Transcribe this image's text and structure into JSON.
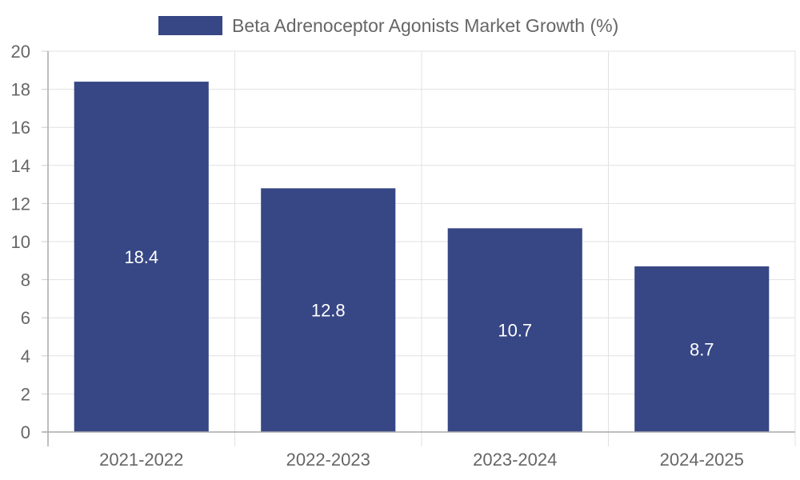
{
  "chart_data": {
    "type": "bar",
    "legend": {
      "position": "top",
      "items": [
        {
          "label": "Beta Adrenoceptor Agonists Market Growth (%)",
          "color": "#374785"
        }
      ]
    },
    "categories": [
      "2021-2022",
      "2022-2023",
      "2023-2024",
      "2024-2025"
    ],
    "series": [
      {
        "name": "Beta Adrenoceptor Agonists Market Growth (%)",
        "values": [
          18.4,
          12.8,
          10.7,
          8.7
        ],
        "color": "#374785"
      }
    ],
    "data_labels": [
      "18.4",
      "12.8",
      "10.7",
      "8.7"
    ],
    "ylim": [
      0,
      20
    ],
    "yticks": [
      0,
      2,
      4,
      6,
      8,
      10,
      12,
      14,
      16,
      18,
      20
    ],
    "grid": true,
    "title": "",
    "xlabel": "",
    "ylabel": ""
  }
}
